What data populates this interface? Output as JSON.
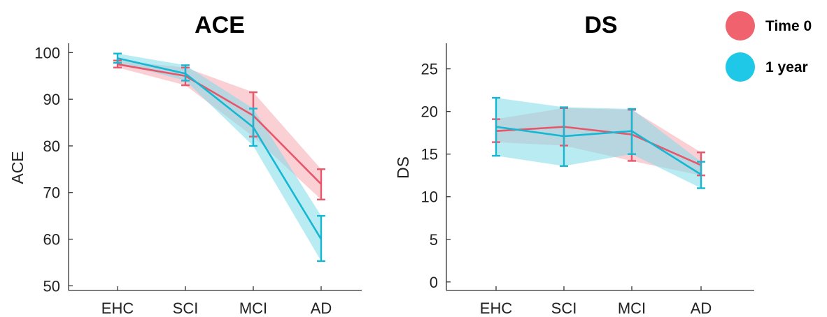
{
  "legend": {
    "placement": "top-right",
    "items": [
      {
        "label": "Time 0",
        "color": "#f0626e"
      },
      {
        "label": "1 year",
        "color": "#1ec8e6"
      }
    ]
  },
  "chart_data": [
    {
      "type": "line",
      "title": "ACE",
      "xlabel": "",
      "ylabel": "ACE",
      "ylim": [
        49,
        102
      ],
      "yticks": [
        50,
        60,
        70,
        80,
        90,
        100
      ],
      "categories": [
        "EHC",
        "SCI",
        "MCI",
        "AD"
      ],
      "grid": false,
      "series": [
        {
          "name": "Time 0",
          "color": "#e8566a",
          "band_color": "#f5a9b3",
          "values": [
            97.5,
            95.0,
            86.5,
            71.8
          ],
          "lower": [
            96.8,
            93.0,
            82.0,
            68.5
          ],
          "upper": [
            98.3,
            96.8,
            91.5,
            75.0
          ]
        },
        {
          "name": "1 year",
          "color": "#15b7d3",
          "band_color": "#7fdbea",
          "values": [
            98.8,
            95.5,
            84.0,
            60.0
          ],
          "lower": [
            97.8,
            94.0,
            80.0,
            55.3
          ],
          "upper": [
            99.8,
            97.3,
            88.0,
            65.0
          ]
        }
      ]
    },
    {
      "type": "line",
      "title": "DS",
      "xlabel": "",
      "ylabel": "DS",
      "ylim": [
        -1,
        28
      ],
      "yticks": [
        0,
        5,
        10,
        15,
        20,
        25
      ],
      "categories": [
        "EHC",
        "SCI",
        "MCI",
        "AD"
      ],
      "grid": false,
      "series": [
        {
          "name": "Time 0",
          "color": "#e8566a",
          "band_color": "#f5a9b3",
          "values": [
            17.7,
            18.2,
            17.3,
            13.7
          ],
          "lower": [
            16.4,
            16.0,
            14.2,
            12.5
          ],
          "upper": [
            19.1,
            20.4,
            20.2,
            15.2
          ]
        },
        {
          "name": "1 year",
          "color": "#15b7d3",
          "band_color": "#7fdbea",
          "values": [
            18.2,
            17.1,
            17.7,
            12.6
          ],
          "lower": [
            14.8,
            13.6,
            15.0,
            11.0
          ],
          "upper": [
            21.6,
            20.5,
            20.3,
            14.1
          ]
        }
      ]
    }
  ]
}
